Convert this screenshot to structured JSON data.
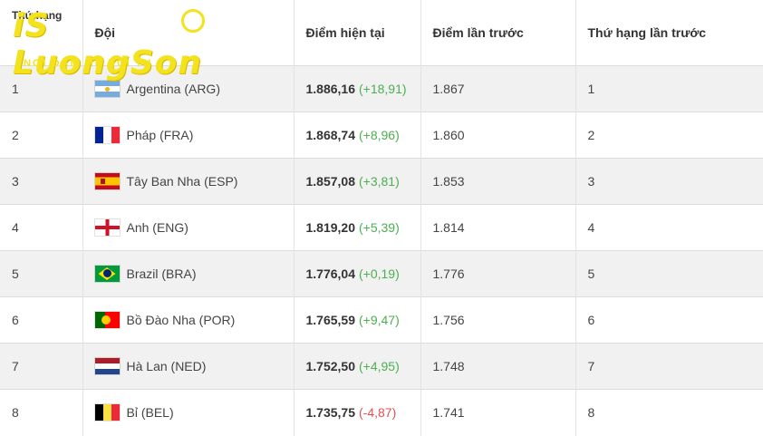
{
  "logo": {
    "name": "LuongSon",
    "tagline": "NƠI ĐAM MÊ HỘI TỤ",
    "color": "#f4e21c"
  },
  "header": {
    "rank": "Thứ hạng",
    "team": "Đội",
    "current_points": "Điểm hiện tại",
    "previous_points": "Điểm lần trước",
    "previous_rank": "Thứ hạng lần trước"
  },
  "colors": {
    "positive": "#4caf50",
    "negative": "#e05252"
  },
  "rows": [
    {
      "rank": "1",
      "team": "Argentina (ARG)",
      "flag": "argentina-flag-icon",
      "points": "1.886,16",
      "change": "(+18,91)",
      "prev_points": "1.867",
      "prev_rank": "1"
    },
    {
      "rank": "2",
      "team": "Pháp (FRA)",
      "flag": "france-flag-icon",
      "points": "1.868,74",
      "change": "(+8,96)",
      "prev_points": "1.860",
      "prev_rank": "2"
    },
    {
      "rank": "3",
      "team": "Tây Ban Nha (ESP)",
      "flag": "spain-flag-icon",
      "points": "1.857,08",
      "change": "(+3,81)",
      "prev_points": "1.853",
      "prev_rank": "3"
    },
    {
      "rank": "4",
      "team": "Anh (ENG)",
      "flag": "england-flag-icon",
      "points": "1.819,20",
      "change": "(+5,39)",
      "prev_points": "1.814",
      "prev_rank": "4"
    },
    {
      "rank": "5",
      "team": "Brazil (BRA)",
      "flag": "brazil-flag-icon",
      "points": "1.776,04",
      "change": "(+0,19)",
      "prev_points": "1.776",
      "prev_rank": "5"
    },
    {
      "rank": "6",
      "team": "Bồ Đào Nha (POR)",
      "flag": "portugal-flag-icon",
      "points": "1.765,59",
      "change": "(+9,47)",
      "prev_points": "1.756",
      "prev_rank": "6"
    },
    {
      "rank": "7",
      "team": "Hà Lan (NED)",
      "flag": "netherlands-flag-icon",
      "points": "1.752,50",
      "change": "(+4,95)",
      "prev_points": "1.748",
      "prev_rank": "7"
    },
    {
      "rank": "8",
      "team": "Bỉ (BEL)",
      "flag": "belgium-flag-icon",
      "points": "1.735,75",
      "change": "(-4,87)",
      "prev_points": "1.741",
      "prev_rank": "8"
    }
  ]
}
